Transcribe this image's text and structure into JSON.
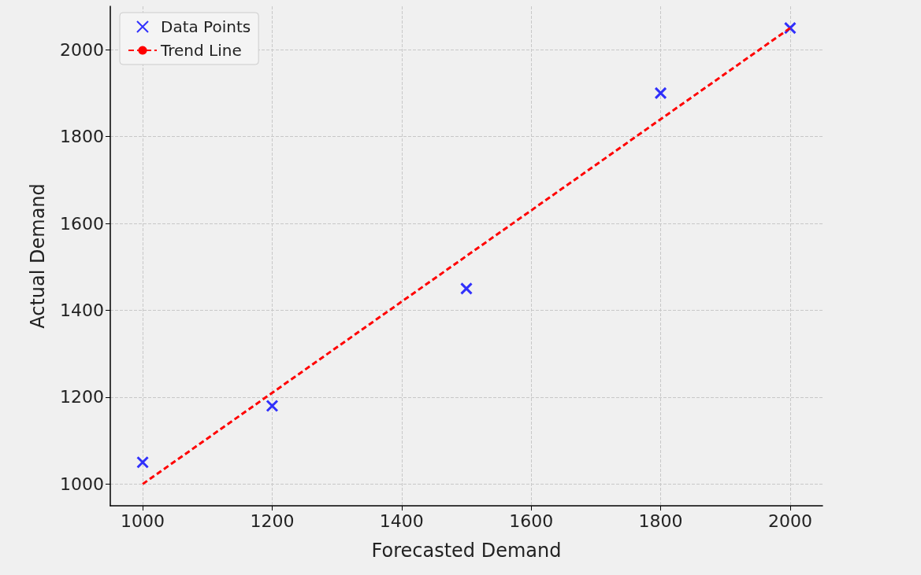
{
  "chart_data": {
    "type": "scatter",
    "xlabel": "Forecasted Demand",
    "ylabel": "Actual Demand",
    "xlim": [
      950,
      2050
    ],
    "xticks": [
      1000,
      1200,
      1400,
      1600,
      1800,
      2000
    ],
    "ylim": [
      950,
      2100
    ],
    "yticks": [
      1000,
      1200,
      1400,
      1600,
      1800,
      2000
    ],
    "grid": true,
    "legend": "top left",
    "series": [
      {
        "name": "Data Points",
        "color": "#0000ff",
        "marker": "cross",
        "x": [
          1000,
          1200,
          1500,
          1800,
          2000
        ],
        "values": [
          1050,
          1180,
          1450,
          1900,
          2050
        ]
      },
      {
        "name": "Trend Line",
        "type": "line",
        "color": "#ff0000",
        "line_style": "dashed",
        "marker": "none",
        "x": [
          1000,
          2000
        ],
        "values": [
          1000,
          2050
        ]
      }
    ]
  }
}
